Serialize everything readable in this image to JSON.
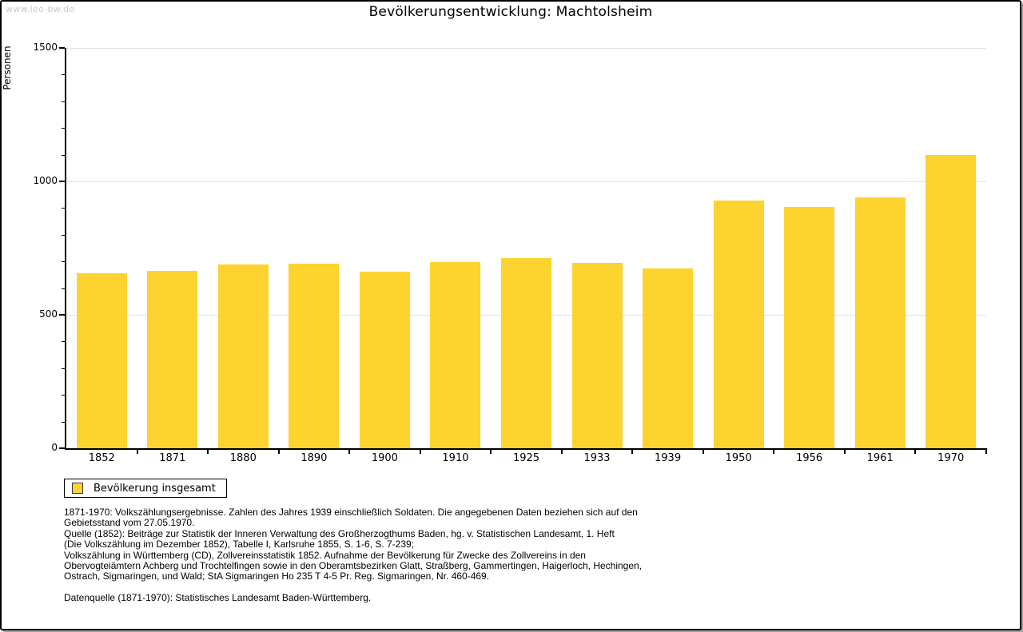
{
  "watermark": "www.leo-bw.de",
  "legend": {
    "label": "Bevölkerung insgesamt"
  },
  "chart_data": {
    "type": "bar",
    "title": "Bevölkerungsentwicklung: Machtolsheim",
    "ylabel": "Personen",
    "xlabel": "",
    "categories": [
      "1852",
      "1871",
      "1880",
      "1890",
      "1900",
      "1910",
      "1925",
      "1933",
      "1939",
      "1950",
      "1956",
      "1961",
      "1970"
    ],
    "values": [
      655,
      666,
      688,
      691,
      661,
      697,
      714,
      696,
      673,
      928,
      903,
      939,
      1100
    ],
    "series_name": "Bevölkerung insgesamt",
    "ylim": [
      0,
      1500
    ],
    "yticks_major": [
      0,
      500,
      1000,
      1500
    ],
    "ytick_minor_step": 100,
    "grid": "horizontal gridlines at 500, 1000, 1500",
    "legend_position": "bottom-left",
    "bar_color": "#fcd32f"
  },
  "colors": {
    "bar": "#fcd32f",
    "gridline": "#e2e2e2",
    "axis": "#000000",
    "watermark": "#c9c9c9"
  },
  "footnotes": {
    "lines": [
      "1871-1970: Volkszählungsergebnisse. Zahlen des Jahres 1939 einschließlich Soldaten. Die angegebenen Daten beziehen sich auf den",
      "Gebietsstand vom 27.05.1970.",
      "Quelle (1852): Beiträge zur Statistik der Inneren Verwaltung des Großherzogthums Baden, hg. v. Statistischen Landesamt, 1. Heft",
      "(Die Volkszählung im Dezember 1852), Tabelle I, Karlsruhe 1855, S. 1-6, S. 7-239;",
      "Volkszählung in Württemberg (CD), Zollvereinsstatistik 1852. Aufnahme der Bevölkerung für Zwecke des Zollvereins in den",
      "Obervogteiämtern Achberg und Trochtelfingen sowie in den Oberamtsbezirken Glatt, Straßberg, Gammertingen, Haigerloch, Hechingen,",
      "Ostrach, Sigmaringen, und Wald; StA Sigmaringen Ho 235 T 4-5 Pr. Reg. Sigmaringen, Nr. 460-469."
    ],
    "datasource": "Datenquelle (1871-1970): Statistisches Landesamt Baden-Württemberg."
  }
}
